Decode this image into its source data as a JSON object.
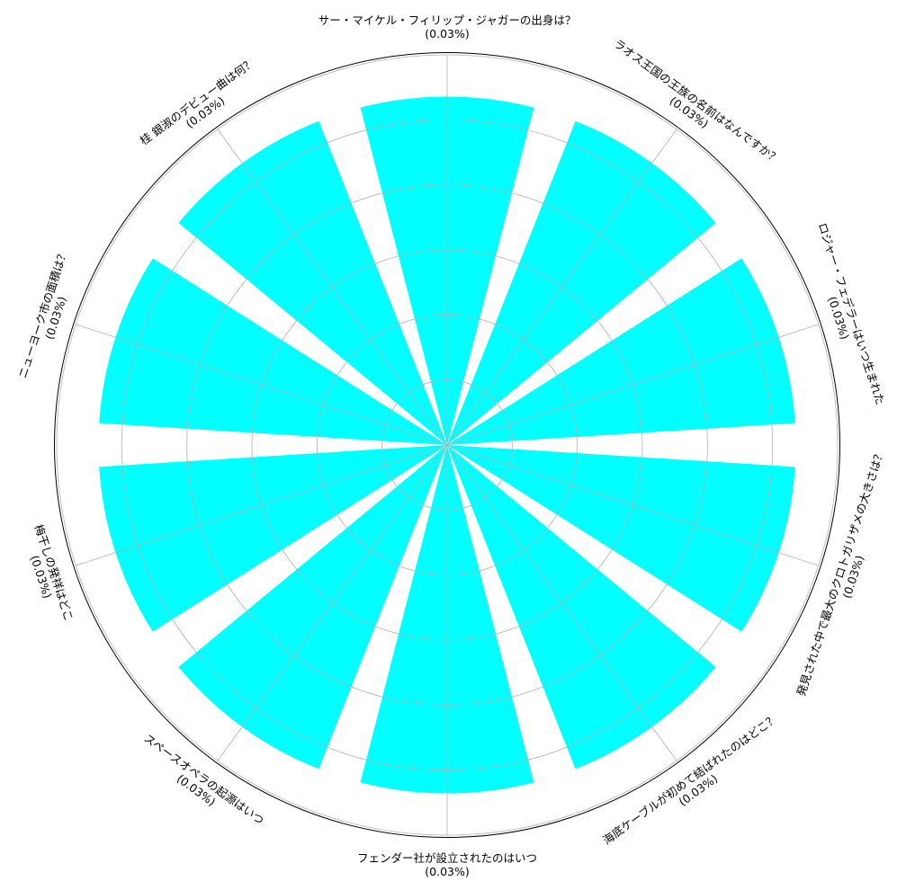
{
  "chart_data": {
    "type": "polar-bar",
    "title": "",
    "categories": [
      "サー・マイケル・フィリップ・ジャガーの出身は？",
      "ラオス王国の王族の名前はなんですか？",
      "ロジャー・フェデラーはいつ生まれた",
      "発見された中で最大のクロトガリザメの大きさは？",
      "海底ケーブルが初めて結ばれたのはどこ？",
      "フェンダー社が設立されたのはいつ",
      "スペースオペラの起源はいつ",
      "梅干しの発祥はどこ",
      "ニューヨーク市の面積は？",
      "桂 銀淑のデビュー曲は何？"
    ],
    "values": [
      1,
      1,
      1,
      1,
      1,
      1,
      1,
      1,
      1,
      1
    ],
    "percent_labels": [
      "(0.03%)",
      "(0.03%)",
      "(0.03%)",
      "(0.03%)",
      "(0.03%)",
      "(0.03%)",
      "(0.03%)",
      "(0.03%)",
      "(0.03%)",
      "(0.03%)"
    ],
    "rlim": [
      0,
      1.12
    ],
    "bar_color": "#00ffff",
    "grid": true,
    "grid_color": "#b0b0b0",
    "frame_color": "#000000"
  }
}
